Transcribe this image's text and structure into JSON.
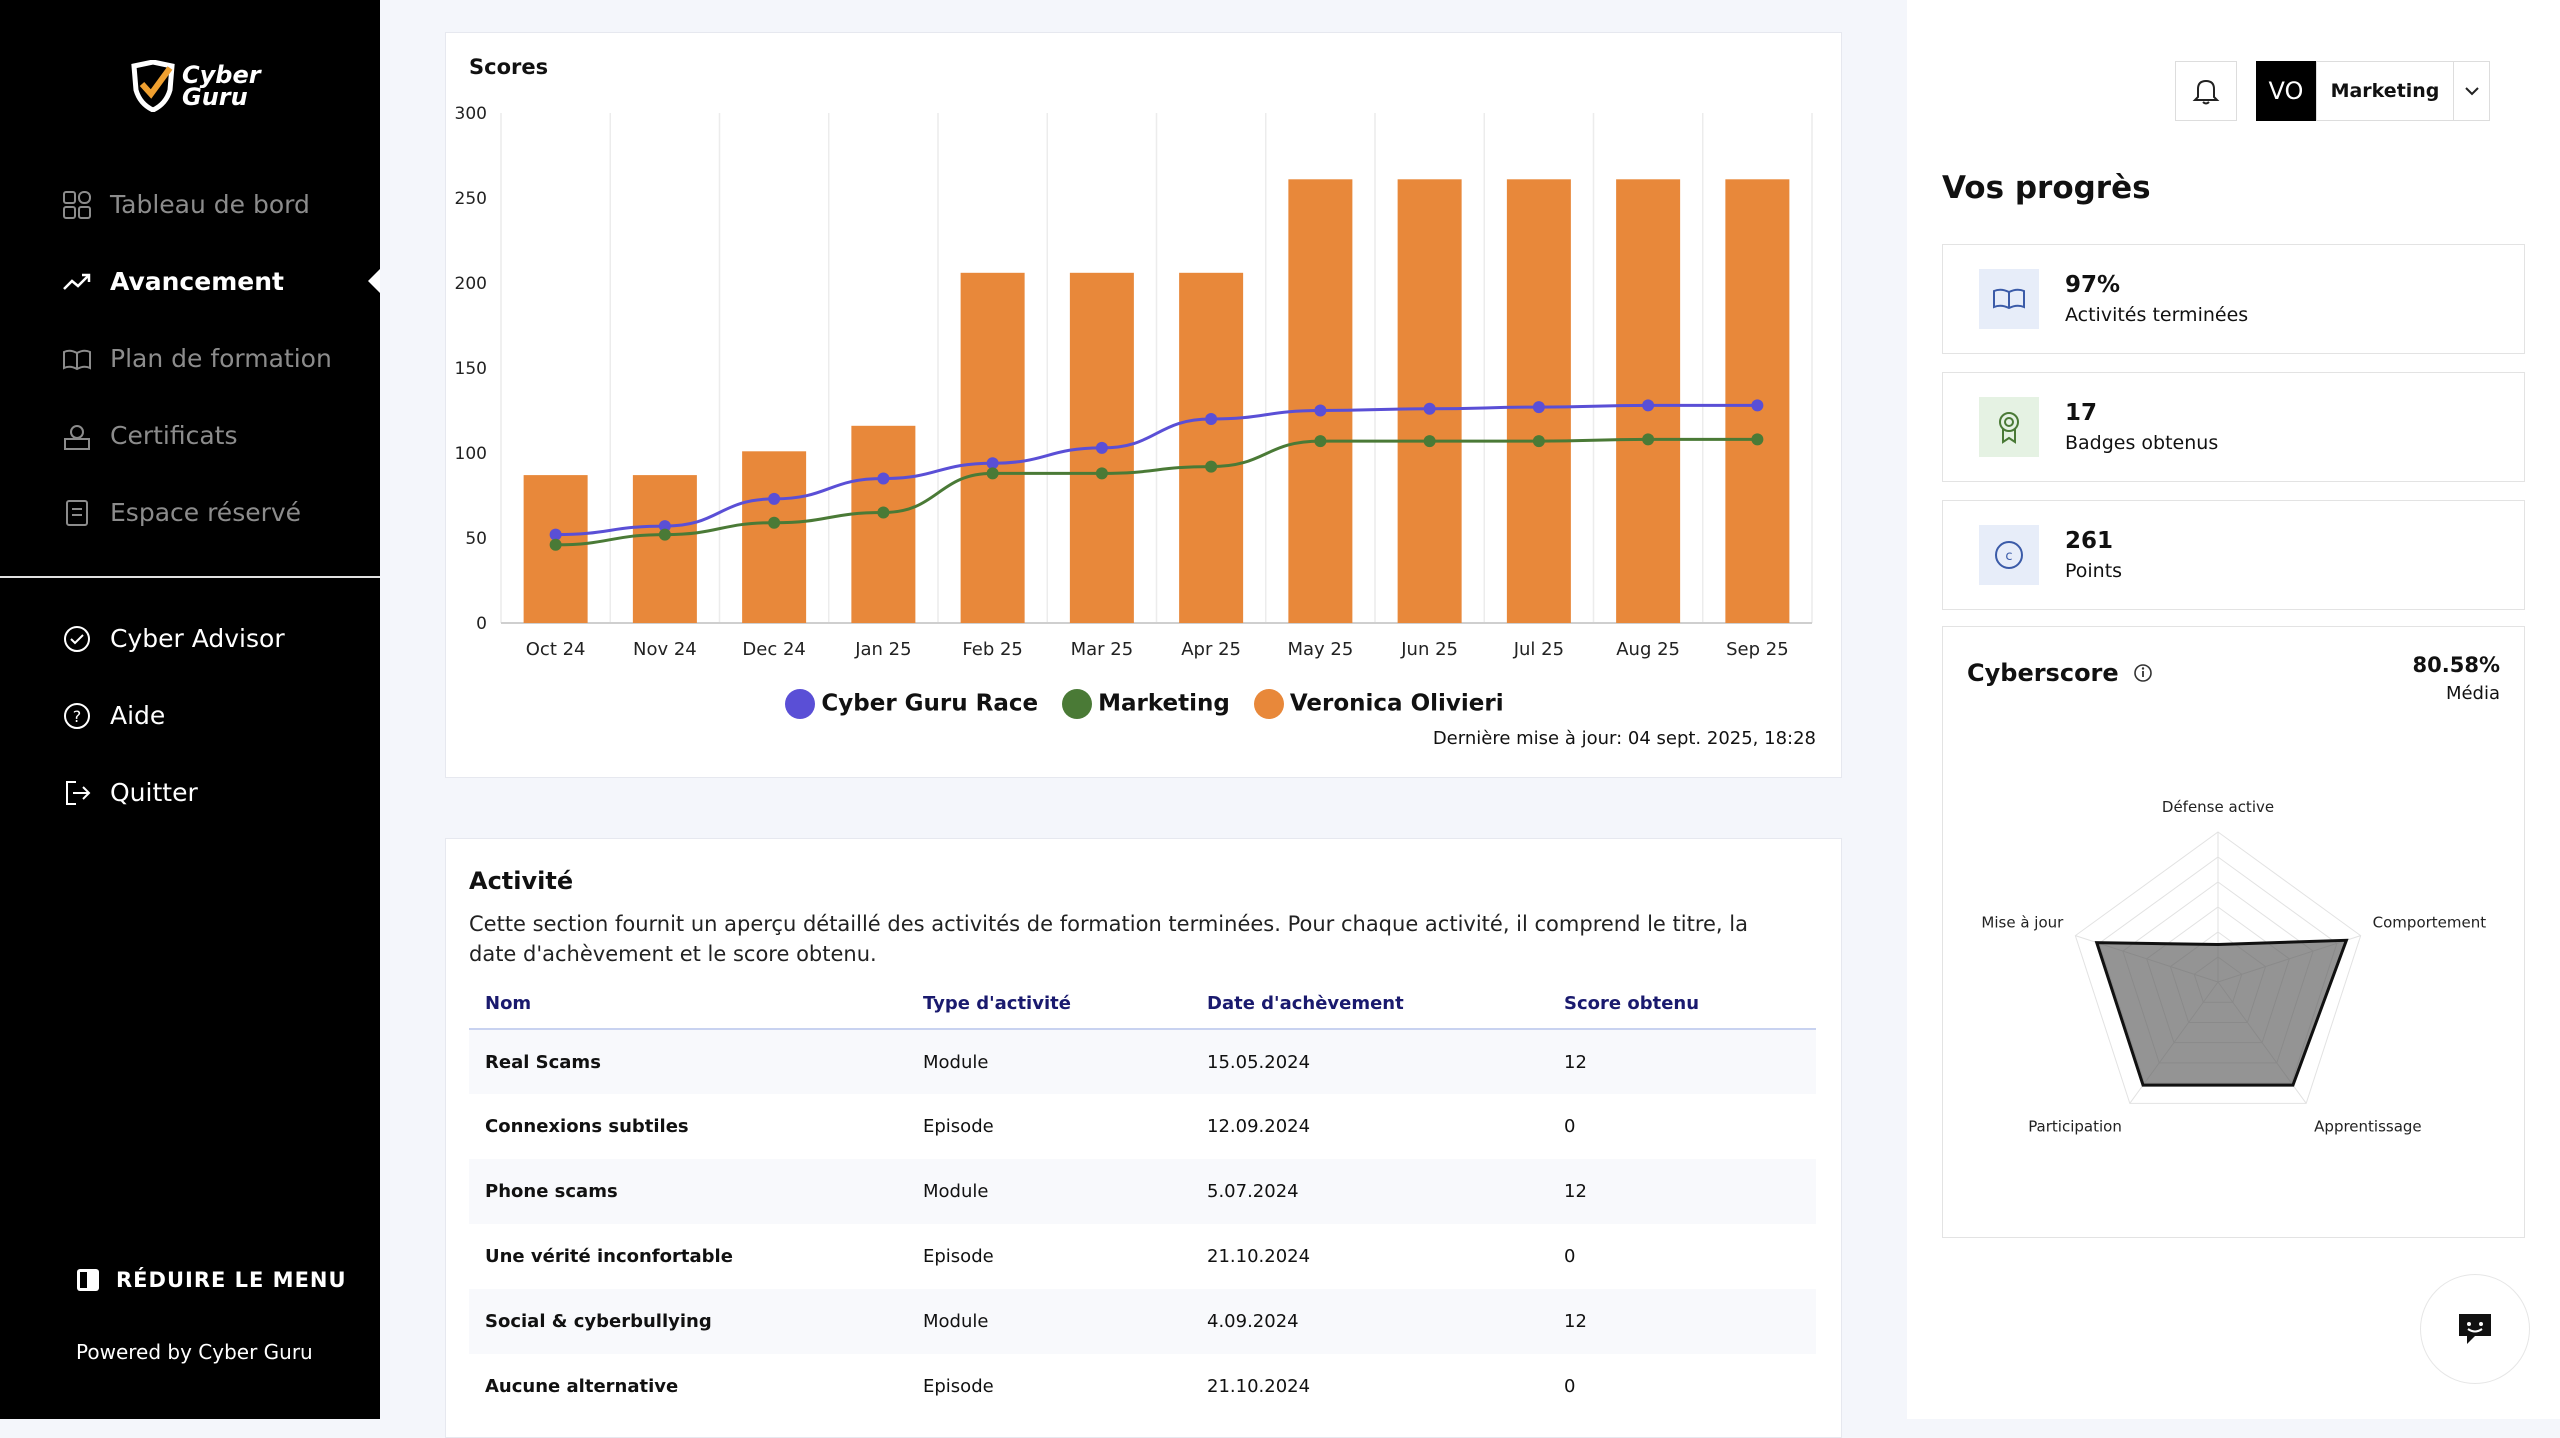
{
  "brand": {
    "logo_text_line1": "Cyber",
    "logo_text_line2": "Guru"
  },
  "nav": {
    "items": [
      {
        "label": "Tableau de bord",
        "icon": "dashboard-icon"
      },
      {
        "label": "Avancement",
        "icon": "trend-icon",
        "active": true
      },
      {
        "label": "Plan de formation",
        "icon": "book-icon"
      },
      {
        "label": "Certificats",
        "icon": "certificate-icon"
      },
      {
        "label": "Espace réservé",
        "icon": "document-icon"
      }
    ],
    "secondary": [
      {
        "label": "Cyber Advisor",
        "icon": "check-circle-icon"
      },
      {
        "label": "Aide",
        "icon": "help-icon"
      },
      {
        "label": "Quitter",
        "icon": "logout-icon"
      }
    ],
    "reduce_label": "RÉDUIRE LE MENU",
    "powered_by": "Powered by  Cyber Guru"
  },
  "scores": {
    "title": "Scores",
    "updated": "Dernière mise à jour: 04 sept. 2025, 18:28"
  },
  "chart_data": {
    "type": "bar",
    "title": "Scores",
    "categories": [
      "Oct 24",
      "Nov 24",
      "Dec 24",
      "Jan 25",
      "Feb 25",
      "Mar 25",
      "Apr 25",
      "May 25",
      "Jun 25",
      "Jul 25",
      "Aug 25",
      "Sep 25"
    ],
    "ylim": [
      0,
      300
    ],
    "yticks": [
      "0",
      "50",
      "100",
      "150",
      "200",
      "250",
      "300"
    ],
    "series": [
      {
        "name": "Cyber Guru Race",
        "type": "line",
        "color": "#5a4fd6",
        "values": [
          52,
          57,
          73,
          85,
          94,
          103,
          120,
          125,
          126,
          127,
          128,
          128
        ]
      },
      {
        "name": "Marketing",
        "type": "line",
        "color": "#4a7a36",
        "values": [
          46,
          52,
          59,
          65,
          88,
          88,
          92,
          107,
          107,
          107,
          108,
          108
        ]
      },
      {
        "name": "Veronica Olivieri",
        "type": "bar",
        "color": "#e8883a",
        "values": [
          87,
          87,
          101,
          116,
          206,
          206,
          206,
          261,
          261,
          261,
          261,
          261
        ]
      }
    ]
  },
  "activity": {
    "title": "Activité",
    "description": "Cette section fournit un aperçu détaillé des activités de formation terminées. Pour chaque activité, il comprend le titre, la date d'achèvement et le score obtenu.",
    "headers": [
      "Nom",
      "Type d'activité",
      "Date d'achèvement",
      "Score obtenu"
    ],
    "rows": [
      [
        "Real Scams",
        "Module",
        "15.05.2024",
        "12"
      ],
      [
        "Connexions subtiles",
        "Episode",
        "12.09.2024",
        "0"
      ],
      [
        "Phone scams",
        "Module",
        "5.07.2024",
        "12"
      ],
      [
        "Une vérité inconfortable",
        "Episode",
        "21.10.2024",
        "0"
      ],
      [
        "Social & cyberbullying",
        "Module",
        "4.09.2024",
        "12"
      ],
      [
        "Aucune alternative",
        "Episode",
        "21.10.2024",
        "0"
      ]
    ]
  },
  "header": {
    "avatar": "VO",
    "team": "Marketing"
  },
  "progress": {
    "title": "Vos progrès",
    "stats": [
      {
        "value": "97%",
        "label": "Activités terminées",
        "icon": "open-book-icon"
      },
      {
        "value": "17",
        "label": "Badges obtenus",
        "icon": "badge-icon"
      },
      {
        "value": "261",
        "label": "Points",
        "icon": "coin-icon"
      }
    ]
  },
  "cyberscore": {
    "title": "Cyberscore",
    "value": "80.58%",
    "level": "Média",
    "axes": [
      "Défense active",
      "Comportement",
      "Apprentissage",
      "Participation",
      "Mise à jour"
    ],
    "values": [
      0.25,
      0.9,
      0.85,
      0.85,
      0.85
    ]
  }
}
